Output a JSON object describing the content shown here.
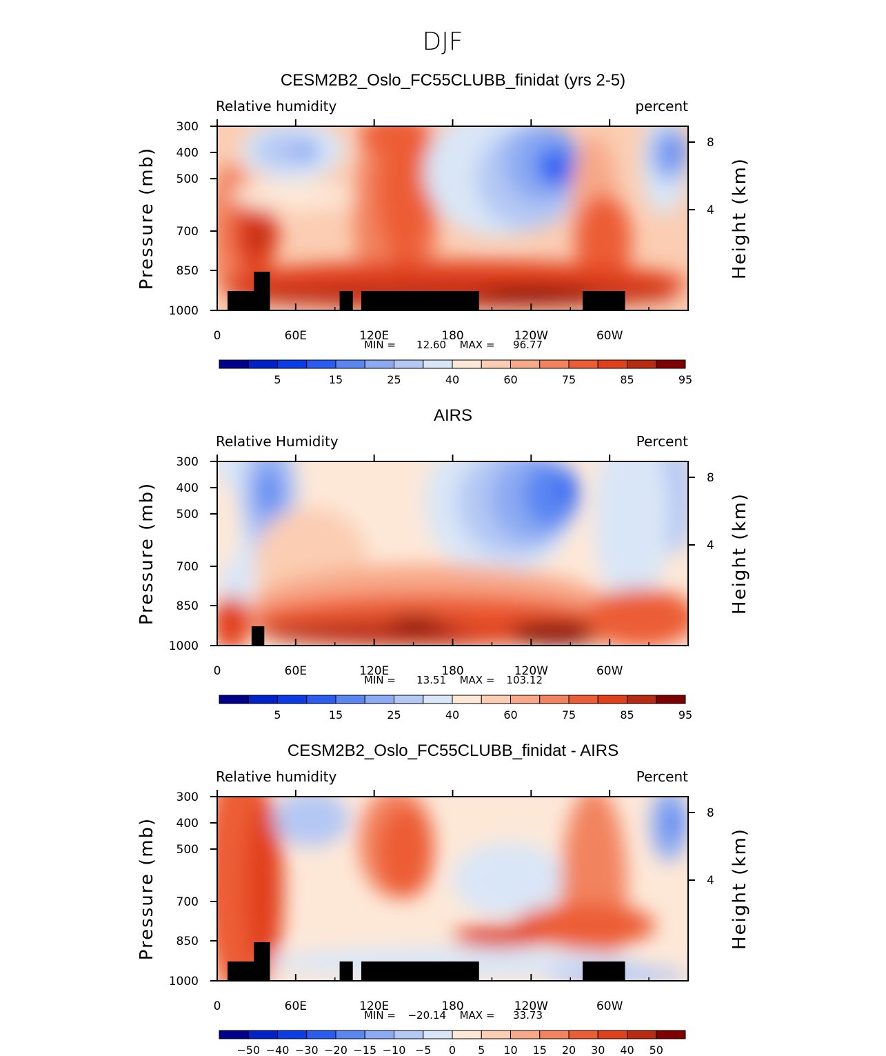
{
  "page": {
    "title": "DJF"
  },
  "colors": {
    "scale": [
      "#00008c",
      "#0022c8",
      "#0a3de6",
      "#2a5cf2",
      "#5a86f2",
      "#8caaf2",
      "#b4c8f4",
      "#d9e6f7",
      "#fde8d8",
      "#fbcdb2",
      "#f7a888",
      "#f2835e",
      "#ec5d36",
      "#e1411a",
      "#b82a12",
      "#7e0000"
    ],
    "land": "#000000",
    "axis": "#000000"
  },
  "chart_data": [
    {
      "type": "heatmap",
      "title": "CESM2B2_Oslo_FC55CLUBB_finidat (yrs 2-5)",
      "left_label": "Relative humidity",
      "right_label": "percent",
      "ylabel": "Pressure (mb)",
      "ylabel_right": "Height (km)",
      "x_ticks": [
        "0",
        "60E",
        "120E",
        "180",
        "120W",
        "60W"
      ],
      "y_ticks": [
        "300",
        "400",
        "500",
        "700",
        "850",
        "1000"
      ],
      "height_ticks": [
        "8",
        "4"
      ],
      "stats_min_label": "MIN =",
      "min": "12.60",
      "stats_max_label": "MAX =",
      "max": "96.77",
      "colorbar_labels": [
        "5",
        "15",
        "25",
        "40",
        "60",
        "75",
        "85",
        "95"
      ],
      "legend_position": "bottom"
    },
    {
      "type": "heatmap",
      "title": "AIRS",
      "left_label": "Relative Humidity",
      "right_label": "Percent",
      "ylabel": "Pressure (mb)",
      "ylabel_right": "Height (km)",
      "x_ticks": [
        "0",
        "60E",
        "120E",
        "180",
        "120W",
        "60W"
      ],
      "y_ticks": [
        "300",
        "400",
        "500",
        "700",
        "850",
        "1000"
      ],
      "height_ticks": [
        "8",
        "4"
      ],
      "stats_min_label": "MIN =",
      "min": "13.51",
      "stats_max_label": "MAX =",
      "max": "103.12",
      "colorbar_labels": [
        "5",
        "15",
        "25",
        "40",
        "60",
        "75",
        "85",
        "95"
      ],
      "legend_position": "bottom"
    },
    {
      "type": "heatmap",
      "title": "CESM2B2_Oslo_FC55CLUBB_finidat - AIRS",
      "left_label": "Relative humidity",
      "right_label": "Percent",
      "ylabel": "Pressure (mb)",
      "ylabel_right": "Height (km)",
      "x_ticks": [
        "0",
        "60E",
        "120E",
        "180",
        "120W",
        "60W"
      ],
      "y_ticks": [
        "300",
        "400",
        "500",
        "700",
        "850",
        "1000"
      ],
      "height_ticks": [
        "8",
        "4"
      ],
      "stats_min_label": "MIN =",
      "min": "−20.14",
      "stats_max_label": "MAX =",
      "max": "33.73",
      "colorbar_labels": [
        "−50",
        "−40",
        "−30",
        "−20",
        "−15",
        "−10",
        "−5",
        "0",
        "5",
        "10",
        "15",
        "20",
        "30",
        "40",
        "50"
      ],
      "legend_position": "bottom"
    }
  ]
}
